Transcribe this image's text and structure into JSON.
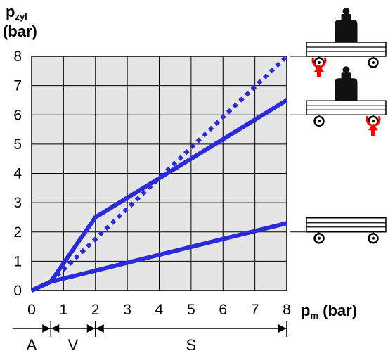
{
  "chart_data": {
    "type": "line",
    "y_label_main": "p",
    "y_label_sub": "zyl",
    "y_label_unit": "(bar)",
    "x_label_main": "p",
    "x_label_sub": "m",
    "x_label_unit": " (bar)",
    "xlim": [
      0,
      8
    ],
    "ylim": [
      0,
      8
    ],
    "x_ticks": [
      "0",
      "1",
      "2",
      "3",
      "4",
      "5",
      "6",
      "7",
      "8"
    ],
    "y_ticks": [
      "0",
      "1",
      "2",
      "3",
      "4",
      "5",
      "6",
      "7",
      "8"
    ],
    "grid": true,
    "series_color": "#2b2bd9",
    "background_color": "#e5e5e5",
    "series": [
      {
        "style": "dotted",
        "x": [
          0.6,
          8
        ],
        "y": [
          0.3,
          8
        ]
      },
      {
        "style": "solid",
        "x": [
          0,
          0.6,
          2,
          8
        ],
        "y": [
          0,
          0.3,
          2.5,
          6.5
        ]
      },
      {
        "style": "solid",
        "x": [
          0,
          0.6,
          8
        ],
        "y": [
          0,
          0.3,
          2.3
        ]
      }
    ],
    "zones": [
      {
        "label": "A",
        "from": -0.6,
        "to": 0.6
      },
      {
        "label": "V",
        "from": 0.6,
        "to": 2
      },
      {
        "label": "S",
        "from": 2,
        "to": 8
      }
    ],
    "side_icons": [
      {
        "name": "weighted-platform-left-lift",
        "y": 8,
        "has_weight": true,
        "arrow_side": "left",
        "arrow_color": "#ff0000"
      },
      {
        "name": "weighted-platform-right-lift",
        "y": 6,
        "has_weight": true,
        "arrow_side": "right",
        "arrow_color": "#ff0000"
      },
      {
        "name": "empty-platform",
        "y": 2,
        "has_weight": false,
        "arrow_side": "none"
      }
    ]
  }
}
